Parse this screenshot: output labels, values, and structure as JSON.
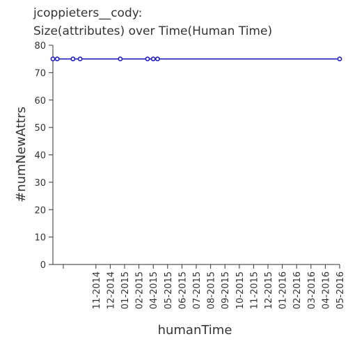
{
  "chart_data": {
    "type": "line",
    "title_line1": "jcoppieters__cody:",
    "title_line2": "Size(attributes) over Time(Human Time)",
    "xlabel": "humanTime",
    "ylabel": "#numNewAttrs",
    "ylim": [
      0,
      80
    ],
    "yticks": [
      "0",
      "10",
      "20",
      "30",
      "40",
      "50",
      "60",
      "70",
      "80"
    ],
    "xticks": [
      "11-2014",
      "12-2014",
      "01-2015",
      "02-2015",
      "04-2015",
      "05-2015",
      "06-2015",
      "07-2015",
      "08-2015",
      "09-2015",
      "10-2015",
      "11-2015",
      "12-2015",
      "01-2016",
      "02-2016",
      "03-2016",
      "04-2016",
      "05-2016"
    ],
    "series": [
      {
        "x": [
          0.0,
          0.3,
          1.4,
          1.9,
          4.7,
          6.6,
          7.0,
          7.3,
          20.0
        ],
        "y": [
          75,
          75,
          75,
          75,
          75,
          75,
          75,
          75,
          75
        ]
      }
    ],
    "grid": false,
    "legend": "none",
    "line_color": "#1f1fbf"
  }
}
